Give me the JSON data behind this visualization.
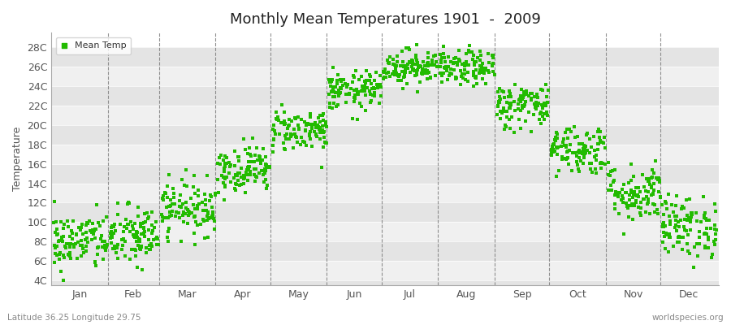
{
  "title": "Monthly Mean Temperatures 1901  -  2009",
  "ylabel": "Temperature",
  "xlabel_labels": [
    "Jan",
    "Feb",
    "Mar",
    "Apr",
    "May",
    "Jun",
    "Jul",
    "Aug",
    "Sep",
    "Oct",
    "Nov",
    "Dec"
  ],
  "subtitle": "Latitude 36.25 Longitude 29.75",
  "watermark": "worldspecies.org",
  "legend_label": "Mean Temp",
  "dot_color": "#22bb00",
  "background_color": "#ffffff",
  "plot_bg_light": "#f0f0f0",
  "plot_bg_dark": "#e4e4e4",
  "ytick_labels": [
    "4C",
    "6C",
    "8C",
    "10C",
    "12C",
    "14C",
    "16C",
    "18C",
    "20C",
    "22C",
    "24C",
    "26C",
    "28C"
  ],
  "ytick_values": [
    4,
    6,
    8,
    10,
    12,
    14,
    16,
    18,
    20,
    22,
    24,
    26,
    28
  ],
  "ylim": [
    3.5,
    29.5
  ],
  "xlim": [
    0,
    366
  ],
  "num_years": 109,
  "monthly_means": [
    8.0,
    8.5,
    11.5,
    15.5,
    19.5,
    23.5,
    26.0,
    25.8,
    22.0,
    17.5,
    13.0,
    9.5
  ],
  "monthly_stds": [
    1.5,
    1.6,
    1.4,
    1.2,
    1.1,
    1.0,
    0.9,
    0.9,
    1.2,
    1.3,
    1.5,
    1.6
  ],
  "seed": 42,
  "month_days": [
    31,
    28,
    31,
    30,
    31,
    30,
    31,
    31,
    30,
    31,
    30,
    31
  ]
}
